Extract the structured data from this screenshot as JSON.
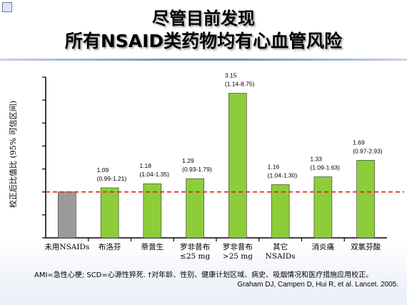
{
  "slide": {
    "title_line1": "尽管目前发现",
    "title_line2": "所有NSAID类药物均有心血管风险",
    "footnote": "AMI=急性心梗; SCD=心源性猝死. †对年龄、性别、健康计划区域、病史、吸烟情况和医疗措施应用校正。",
    "citation": "Graham DJ, Campen D, Hui R, et al. Lancet. 2005."
  },
  "chart_data": {
    "type": "bar",
    "title": "",
    "xlabel": "",
    "ylabel": "校正后比值比 (95% 可信区间)",
    "ylim": [
      0,
      3.5
    ],
    "yticks": [
      0,
      0.5,
      1,
      1.5,
      2,
      2.5,
      3,
      3.5
    ],
    "show_tick_labels": false,
    "grid": false,
    "reference_line": {
      "value": 1.0,
      "color": "#e0201b",
      "style": "dashed"
    },
    "categories": [
      {
        "label": [
          "未用NSAIDs"
        ],
        "value": 1.0,
        "ci": "",
        "color": "#9a9a9a"
      },
      {
        "label": [
          "布洛芬"
        ],
        "value": 1.09,
        "ci": "(0.99-1.21)",
        "color": "#8dcd3a"
      },
      {
        "label": [
          "萘普生"
        ],
        "value": 1.18,
        "ci": "(1.04-1.35)",
        "color": "#8dcd3a"
      },
      {
        "label": [
          "罗非昔布",
          "≤25 mg"
        ],
        "value": 1.29,
        "ci": "(0.93-1.79)",
        "color": "#8dcd3a"
      },
      {
        "label": [
          "罗非昔布",
          ">25 mg"
        ],
        "value": 3.15,
        "ci": "(1.14-8.75)",
        "color": "#8dcd3a"
      },
      {
        "label": [
          "其它",
          "NSAIDs"
        ],
        "value": 1.16,
        "ci": "(1.04-1.30)",
        "color": "#8dcd3a"
      },
      {
        "label": [
          "消炎痛"
        ],
        "value": 1.33,
        "ci": "(1.09-1.63)",
        "color": "#8dcd3a"
      },
      {
        "label": [
          "双氯芬酸"
        ],
        "value": 1.69,
        "ci": "(0.97-2.93)",
        "color": "#8dcd3a"
      }
    ],
    "values": [
      1.0,
      1.09,
      1.18,
      1.29,
      3.15,
      1.16,
      1.33,
      1.69
    ]
  }
}
